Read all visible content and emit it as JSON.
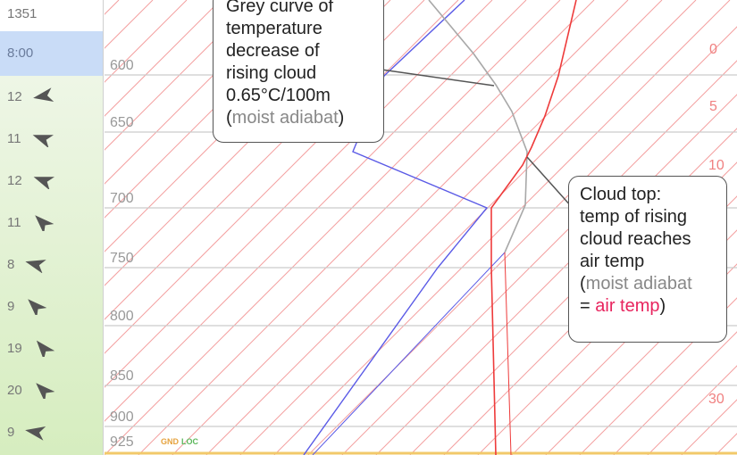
{
  "sidebar": {
    "sounding_id": "1351",
    "time": "8:00",
    "winds": [
      {
        "speed": "12",
        "icon": "wind-arrow-icon"
      },
      {
        "speed": "11",
        "icon": "wind-arrow-icon"
      },
      {
        "speed": "12",
        "icon": "wind-arrow-icon"
      },
      {
        "speed": "11",
        "icon": "wind-arrow-icon"
      },
      {
        "speed": "8",
        "icon": "wind-arrow-icon"
      },
      {
        "speed": "9",
        "icon": "wind-arrow-icon"
      },
      {
        "speed": "19",
        "icon": "wind-arrow-icon"
      },
      {
        "speed": "20",
        "icon": "wind-arrow-icon"
      },
      {
        "speed": "9",
        "icon": "wind-arrow-icon"
      }
    ]
  },
  "pressure_levels": [
    "600",
    "650",
    "700",
    "750",
    "800",
    "850",
    "900",
    "925"
  ],
  "temperature_labels": [
    "0",
    "5",
    "10",
    "30"
  ],
  "ground_labels": {
    "gnd": "GND",
    "loc": "LOC"
  },
  "callouts": {
    "moist": {
      "line1": "Grey curve of",
      "line2": "temperature",
      "line3": "decrease of",
      "line4": "rising cloud",
      "line5": "0.65°C/100m",
      "paren_open": "(",
      "grey_text": "moist adiabat",
      "paren_close": ")"
    },
    "top": {
      "line1": "Cloud top:",
      "line2": "temp of rising",
      "line3": "cloud reaches",
      "line4": "air temp",
      "paren_open": "(",
      "grey_text": "moist adiabat",
      "eq": "=",
      "red_text": "air temp",
      "paren_close": ")"
    }
  },
  "colors": {
    "isotherm": "#f3a0a0",
    "isobar": "#cccccc",
    "dewpoint": "#5a5ae6",
    "air_temp": "#ee3b3b",
    "moist_adiabat": "#a8a8a8",
    "ground": "#f2c96a"
  }
}
